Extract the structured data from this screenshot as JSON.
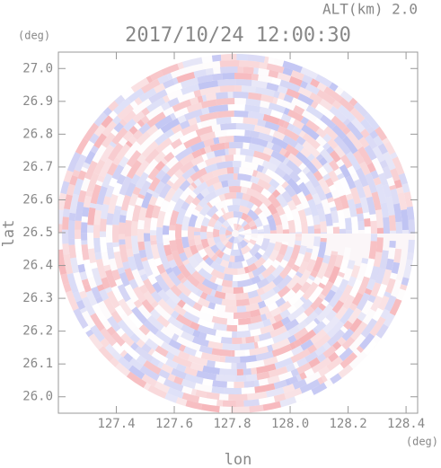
{
  "chart_data": {
    "type": "ppi",
    "title": "2017/10/24 12:00:30",
    "subtitle": "ALT(km) 2.0",
    "xlabel": "lon",
    "ylabel": "lat",
    "xunit": "(deg)",
    "yunit": "(deg)",
    "xlim": [
      127.2,
      128.44
    ],
    "ylim": [
      25.95,
      27.05
    ],
    "xticks": [
      127.4,
      127.6,
      127.8,
      {
        "value": 128.0,
        "label": "128.0"
      },
      128.2,
      128.4
    ],
    "yticks": [
      {
        "value": 26.0,
        "label": "26.0"
      },
      26.1,
      26.2,
      26.3,
      26.4,
      26.5,
      26.6,
      26.7,
      26.8,
      26.9,
      {
        "value": 27.0,
        "label": "27.0"
      }
    ]
  }
}
